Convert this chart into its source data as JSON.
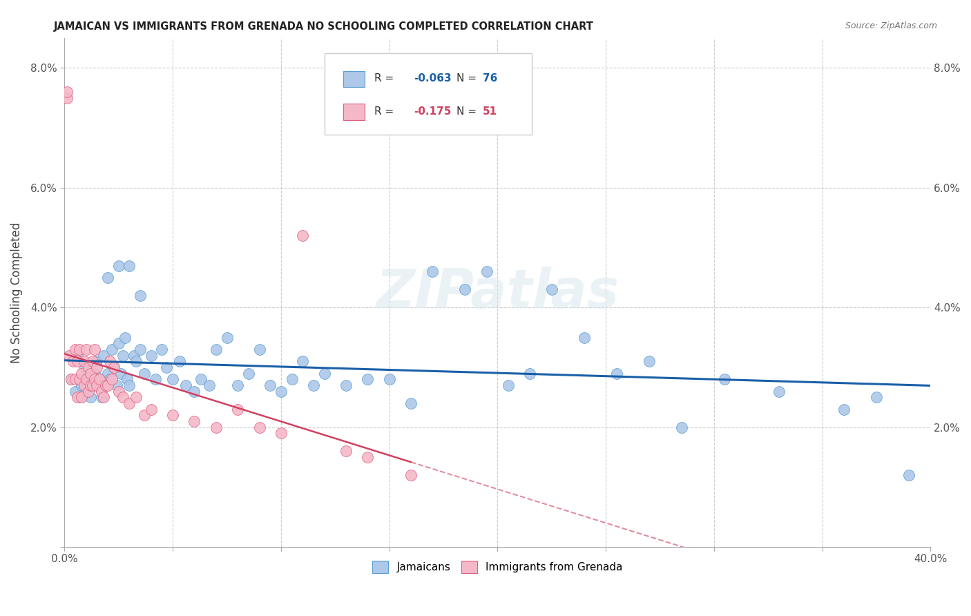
{
  "title": "JAMAICAN VS IMMIGRANTS FROM GRENADA NO SCHOOLING COMPLETED CORRELATION CHART",
  "source": "Source: ZipAtlas.com",
  "ylabel": "No Schooling Completed",
  "xlim": [
    0.0,
    0.4
  ],
  "ylim": [
    0.0,
    0.085
  ],
  "xticks": [
    0.0,
    0.05,
    0.1,
    0.15,
    0.2,
    0.25,
    0.3,
    0.35,
    0.4
  ],
  "yticks": [
    0.0,
    0.02,
    0.04,
    0.06,
    0.08
  ],
  "ytick_labels": [
    "",
    "2.0%",
    "4.0%",
    "6.0%",
    "8.0%"
  ],
  "xtick_labels": [
    "0.0%",
    "",
    "",
    "",
    "",
    "",
    "",
    "",
    "40.0%"
  ],
  "legend_r_blue": "-0.063",
  "legend_n_blue": "76",
  "legend_r_pink": "-0.175",
  "legend_n_pink": "51",
  "blue_fill": "#adc8e8",
  "blue_edge": "#5a9fd4",
  "pink_fill": "#f5b8c8",
  "pink_edge": "#e06080",
  "line_blue": "#1a5fa8",
  "line_pink": "#d04060",
  "watermark": "ZIPatlas",
  "blue_x": [
    0.003,
    0.005,
    0.006,
    0.007,
    0.008,
    0.009,
    0.01,
    0.011,
    0.012,
    0.013,
    0.014,
    0.015,
    0.015,
    0.016,
    0.017,
    0.018,
    0.019,
    0.02,
    0.021,
    0.022,
    0.023,
    0.024,
    0.025,
    0.026,
    0.027,
    0.028,
    0.029,
    0.03,
    0.032,
    0.033,
    0.035,
    0.037,
    0.04,
    0.042,
    0.045,
    0.047,
    0.05,
    0.053,
    0.056,
    0.06,
    0.063,
    0.067,
    0.07,
    0.075,
    0.08,
    0.085,
    0.09,
    0.095,
    0.1,
    0.105,
    0.11,
    0.115,
    0.12,
    0.13,
    0.14,
    0.15,
    0.16,
    0.17,
    0.185,
    0.195,
    0.205,
    0.215,
    0.225,
    0.24,
    0.255,
    0.27,
    0.285,
    0.305,
    0.33,
    0.36,
    0.375,
    0.39,
    0.02,
    0.025,
    0.03,
    0.035
  ],
  "blue_y": [
    0.028,
    0.026,
    0.032,
    0.025,
    0.027,
    0.03,
    0.026,
    0.028,
    0.025,
    0.027,
    0.029,
    0.027,
    0.031,
    0.028,
    0.025,
    0.032,
    0.027,
    0.029,
    0.028,
    0.033,
    0.03,
    0.027,
    0.034,
    0.029,
    0.032,
    0.035,
    0.028,
    0.027,
    0.032,
    0.031,
    0.033,
    0.029,
    0.032,
    0.028,
    0.033,
    0.03,
    0.028,
    0.031,
    0.027,
    0.026,
    0.028,
    0.027,
    0.033,
    0.035,
    0.027,
    0.029,
    0.033,
    0.027,
    0.026,
    0.028,
    0.031,
    0.027,
    0.029,
    0.027,
    0.028,
    0.028,
    0.024,
    0.046,
    0.043,
    0.046,
    0.027,
    0.029,
    0.043,
    0.035,
    0.029,
    0.031,
    0.02,
    0.028,
    0.026,
    0.023,
    0.025,
    0.012,
    0.045,
    0.047,
    0.047,
    0.042
  ],
  "pink_x": [
    0.001,
    0.001,
    0.002,
    0.003,
    0.004,
    0.005,
    0.005,
    0.006,
    0.006,
    0.007,
    0.007,
    0.008,
    0.008,
    0.009,
    0.009,
    0.01,
    0.01,
    0.011,
    0.011,
    0.012,
    0.012,
    0.013,
    0.013,
    0.014,
    0.014,
    0.015,
    0.015,
    0.016,
    0.017,
    0.018,
    0.019,
    0.02,
    0.021,
    0.022,
    0.023,
    0.025,
    0.027,
    0.03,
    0.033,
    0.037,
    0.04,
    0.05,
    0.06,
    0.07,
    0.08,
    0.09,
    0.1,
    0.11,
    0.13,
    0.14,
    0.16
  ],
  "pink_y": [
    0.075,
    0.076,
    0.032,
    0.028,
    0.031,
    0.028,
    0.033,
    0.025,
    0.031,
    0.028,
    0.033,
    0.025,
    0.029,
    0.027,
    0.031,
    0.028,
    0.033,
    0.026,
    0.03,
    0.027,
    0.029,
    0.027,
    0.031,
    0.028,
    0.033,
    0.027,
    0.03,
    0.028,
    0.026,
    0.025,
    0.027,
    0.027,
    0.031,
    0.028,
    0.03,
    0.026,
    0.025,
    0.024,
    0.025,
    0.022,
    0.023,
    0.022,
    0.021,
    0.02,
    0.023,
    0.02,
    0.019,
    0.052,
    0.016,
    0.015,
    0.012
  ]
}
